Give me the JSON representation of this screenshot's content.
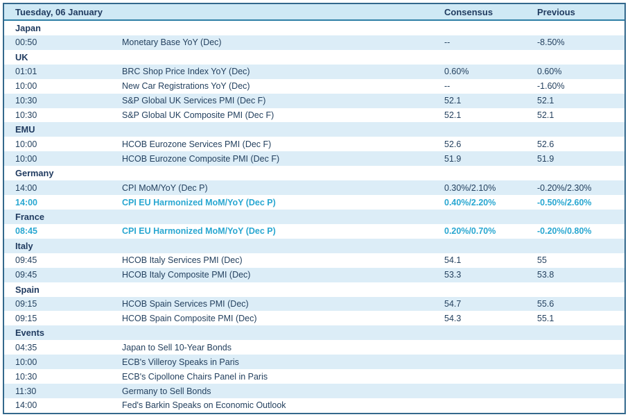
{
  "table": {
    "header": {
      "date_label": "Tuesday, 06 January",
      "consensus_label": "Consensus",
      "previous_label": "Previous"
    },
    "colors": {
      "header_bg": "#cfe9f5",
      "row_stripe_blue": "#dcedf7",
      "outer_border": "#33688c",
      "header_rule": "#2d7fa6",
      "text_navy": "#1f3a5f",
      "highlight_cyan": "#29a7d1"
    },
    "rows": [
      {
        "type": "section",
        "label": "Japan"
      },
      {
        "type": "data",
        "time": "00:50",
        "event": "Monetary Base YoY (Dec)",
        "consensus": "--",
        "previous": "-8.50%",
        "highlight": false
      },
      {
        "type": "section",
        "label": "UK"
      },
      {
        "type": "data",
        "time": "01:01",
        "event": "BRC Shop Price Index YoY (Dec)",
        "consensus": "0.60%",
        "previous": "0.60%",
        "highlight": false
      },
      {
        "type": "data",
        "time": "10:00",
        "event": "New Car Registrations YoY (Dec)",
        "consensus": "--",
        "previous": "-1.60%",
        "highlight": false
      },
      {
        "type": "data",
        "time": "10:30",
        "event": "S&P Global UK Services PMI (Dec F)",
        "consensus": "52.1",
        "previous": "52.1",
        "highlight": false
      },
      {
        "type": "data",
        "time": "10:30",
        "event": "S&P Global UK Composite PMI (Dec F)",
        "consensus": "52.1",
        "previous": "52.1",
        "highlight": false
      },
      {
        "type": "section",
        "label": "EMU"
      },
      {
        "type": "data",
        "time": "10:00",
        "event": "HCOB Eurozone Services PMI (Dec F)",
        "consensus": "52.6",
        "previous": "52.6",
        "highlight": false
      },
      {
        "type": "data",
        "time": "10:00",
        "event": "HCOB Eurozone Composite PMI (Dec F)",
        "consensus": "51.9",
        "previous": "51.9",
        "highlight": false
      },
      {
        "type": "section",
        "label": "Germany"
      },
      {
        "type": "data",
        "time": "14:00",
        "event": "CPI MoM/YoY (Dec P)",
        "consensus": "0.30%/2.10%",
        "previous": "-0.20%/2.30%",
        "highlight": false
      },
      {
        "type": "data",
        "time": "14:00",
        "event": "CPI EU Harmonized MoM/YoY (Dec P)",
        "consensus": "0.40%/2.20%",
        "previous": "-0.50%/2.60%",
        "highlight": true
      },
      {
        "type": "section",
        "label": "France"
      },
      {
        "type": "data",
        "time": "08:45",
        "event": "CPI EU Harmonized MoM/YoY (Dec P)",
        "consensus": "0.20%/0.70%",
        "previous": "-0.20%/0.80%",
        "highlight": true
      },
      {
        "type": "section",
        "label": "Italy"
      },
      {
        "type": "data",
        "time": "09:45",
        "event": "HCOB Italy Services PMI (Dec)",
        "consensus": "54.1",
        "previous": "55",
        "highlight": false
      },
      {
        "type": "data",
        "time": "09:45",
        "event": "HCOB Italy Composite PMI (Dec)",
        "consensus": "53.3",
        "previous": "53.8",
        "highlight": false
      },
      {
        "type": "section",
        "label": "Spain"
      },
      {
        "type": "data",
        "time": "09:15",
        "event": "HCOB Spain Services PMI (Dec)",
        "consensus": "54.7",
        "previous": "55.6",
        "highlight": false
      },
      {
        "type": "data",
        "time": "09:15",
        "event": "HCOB Spain Composite PMI (Dec)",
        "consensus": "54.3",
        "previous": "55.1",
        "highlight": false
      },
      {
        "type": "section",
        "label": "Events"
      },
      {
        "type": "data",
        "time": "04:35",
        "event": "Japan to Sell 10-Year Bonds",
        "consensus": "",
        "previous": "",
        "highlight": false
      },
      {
        "type": "data",
        "time": "10:00",
        "event": "ECB's Villeroy Speaks in Paris",
        "consensus": "",
        "previous": "",
        "highlight": false
      },
      {
        "type": "data",
        "time": "10:30",
        "event": "ECB's Cipollone Chairs Panel in Paris",
        "consensus": "",
        "previous": "",
        "highlight": false
      },
      {
        "type": "data",
        "time": "11:30",
        "event": "Germany to Sell Bonds",
        "consensus": "",
        "previous": "",
        "highlight": false
      },
      {
        "type": "data",
        "time": "14:00",
        "event": "Fed's Barkin Speaks on Economic Outlook",
        "consensus": "",
        "previous": "",
        "highlight": false
      }
    ]
  }
}
